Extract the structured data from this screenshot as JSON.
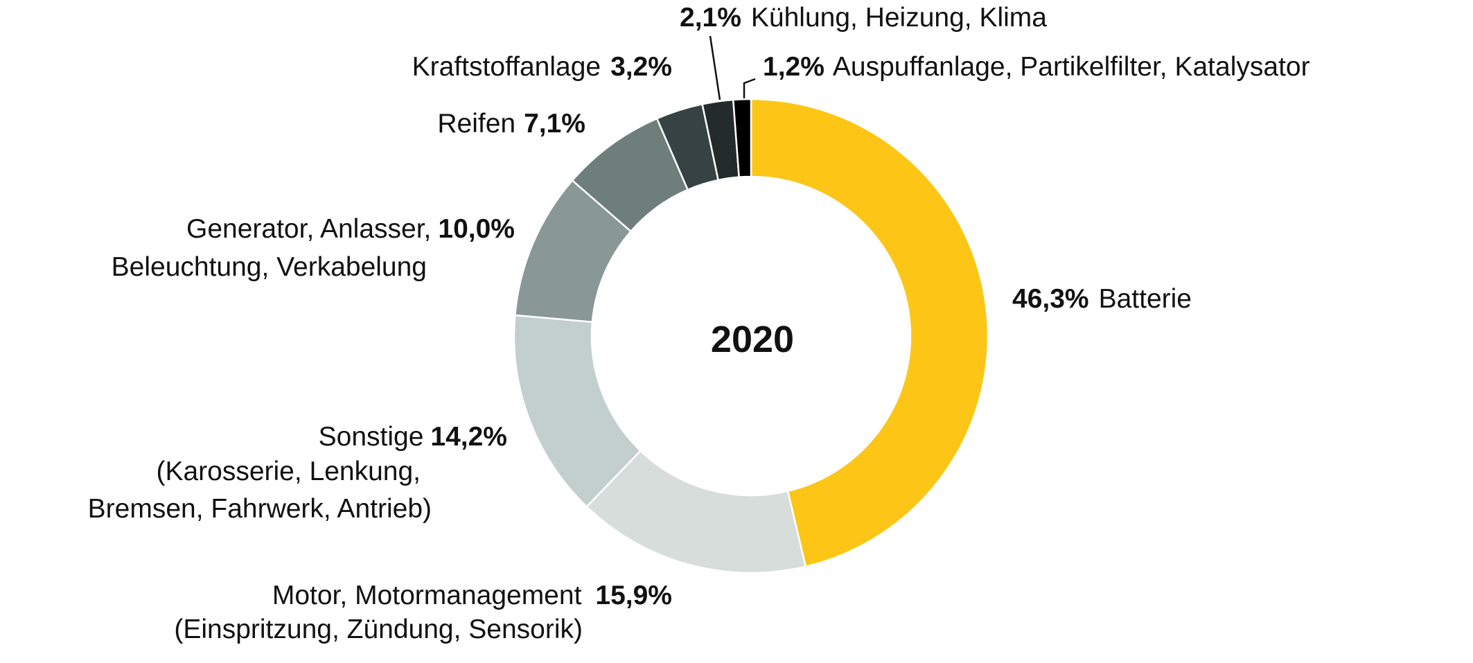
{
  "chart_data": {
    "type": "pie",
    "variant": "donut",
    "center_label": "2020",
    "start": "top",
    "direction": "clockwise",
    "slices": [
      {
        "name": "Batterie",
        "value": 46.3,
        "value_label": "46,3%",
        "color": "#FDC616"
      },
      {
        "name": "Motor, Motormanagement (Einspritzung, Zündung, Sensorik)",
        "value": 15.9,
        "value_label": "15,9%",
        "color": "#D6DDDB"
      },
      {
        "name": "Sonstige (Karosserie, Lenkung, Bremsen, Fahrwerk, Antrieb)",
        "value": 14.2,
        "value_label": "14,2%",
        "color": "#C3CFCC"
      },
      {
        "name": "Generator, Anlasser, Beleuchtung, Verkabelung",
        "value": 10.0,
        "value_label": "10,0%",
        "color": "#899795"
      },
      {
        "name": "Reifen",
        "value": 7.1,
        "value_label": "7,1%",
        "color": "#6D7E7B"
      },
      {
        "name": "Kraftstoffanlage",
        "value": 3.2,
        "value_label": "3,2%",
        "color": "#364244"
      },
      {
        "name": "Kühlung, Heizung, Klima",
        "value": 2.1,
        "value_label": "2,1%",
        "color": "#232B2D"
      },
      {
        "name": "Auspuffanlage, Partikelfilter, Katalysator",
        "value": 1.2,
        "value_label": "1,2%",
        "color": "#000000"
      }
    ]
  },
  "labels": {
    "batterie": {
      "pct": "46,3%",
      "text": "Batterie"
    },
    "motor": {
      "line1": "Motor, Motormanagement",
      "pct": "15,9%",
      "line2": "(Einspritzung, Zündung, Sensorik)"
    },
    "sonstige": {
      "line1": "Sonstige",
      "pct": "14,2%",
      "line2": "(Karosserie, Lenkung,",
      "line3": "Bremsen, Fahrwerk, Antrieb)"
    },
    "generator": {
      "line1": "Generator, Anlasser,",
      "pct": "10,0%",
      "line2": "Beleuchtung, Verkabelung"
    },
    "reifen": {
      "text": "Reifen",
      "pct": "7,1%"
    },
    "kraftstoff": {
      "text": "Kraftstoffanlage",
      "pct": "3,2%"
    },
    "kuehlung": {
      "pct": "2,1%",
      "text": "Kühlung, Heizung, Klima"
    },
    "auspuff": {
      "pct": "1,2%",
      "text": "Auspuffanlage, Partikelfilter, Katalysator"
    }
  }
}
